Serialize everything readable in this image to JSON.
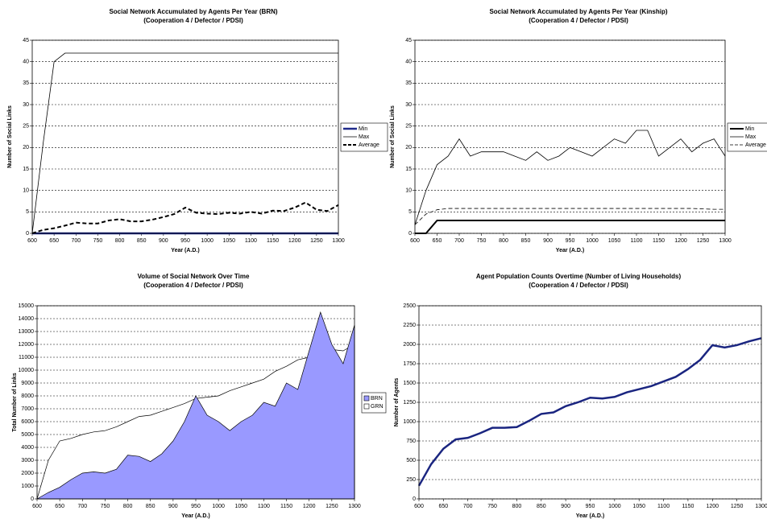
{
  "chart_data": [
    {
      "type": "line",
      "title": "Social Network Accumulated by Agents Per Year (BRN)",
      "subtitle": "(Cooperation 4 / Defector / PDSI)",
      "x_label": "Year (A.D.)",
      "y_label": "Number of Social Links",
      "x": [
        600,
        625,
        650,
        675,
        700,
        725,
        750,
        775,
        800,
        825,
        850,
        875,
        900,
        925,
        950,
        975,
        1000,
        1025,
        1050,
        1075,
        1100,
        1125,
        1150,
        1175,
        1200,
        1225,
        1250,
        1275,
        1300
      ],
      "xlim": [
        600,
        1300
      ],
      "xticks": [
        600,
        650,
        700,
        750,
        800,
        850,
        900,
        950,
        1000,
        1050,
        1100,
        1150,
        1200,
        1250,
        1300
      ],
      "ylim": [
        0,
        45
      ],
      "yticks": [
        0,
        5,
        10,
        15,
        20,
        25,
        30,
        35,
        40,
        45
      ],
      "grid": true,
      "legend": "right",
      "series": [
        {
          "name": "Min",
          "color": "#1f2a8a",
          "line_width": 2.5,
          "style": "solid",
          "values": [
            0,
            0,
            0,
            0,
            0,
            0,
            0,
            0,
            0,
            0,
            0,
            0,
            0,
            0,
            0,
            0,
            0,
            0,
            0,
            0,
            0,
            0,
            0,
            0,
            0,
            0,
            0,
            0,
            0
          ]
        },
        {
          "name": "Max",
          "color": "#000000",
          "line_width": 0.8,
          "style": "solid",
          "values": [
            0,
            21,
            40,
            42,
            42,
            42,
            42,
            42,
            42,
            42,
            42,
            42,
            42,
            42,
            42,
            42,
            42,
            42,
            42,
            42,
            42,
            42,
            42,
            42,
            42,
            42,
            42,
            42,
            42
          ]
        },
        {
          "name": "Average",
          "color": "#000000",
          "line_width": 2,
          "style": "dashed",
          "values": [
            0,
            0.8,
            1.2,
            1.8,
            2.5,
            2.3,
            2.3,
            3,
            3.3,
            2.8,
            2.8,
            3.2,
            3.8,
            4.5,
            6,
            4.8,
            4.6,
            4.5,
            4.8,
            4.6,
            5,
            4.6,
            5.3,
            5.2,
            6,
            7.2,
            5.5,
            5.2,
            6.6
          ]
        }
      ]
    },
    {
      "type": "line",
      "title": "Social Network Accumulated by Agents Per Year (Kinship)",
      "subtitle": "(Cooperation 4 / Defector / PDSI)",
      "x_label": "Year (A.D.)",
      "y_label": "Number of Social Links",
      "x": [
        600,
        625,
        650,
        675,
        700,
        725,
        750,
        775,
        800,
        825,
        850,
        875,
        900,
        925,
        950,
        975,
        1000,
        1025,
        1050,
        1075,
        1100,
        1125,
        1150,
        1175,
        1200,
        1225,
        1250,
        1275,
        1300
      ],
      "xlim": [
        600,
        1300
      ],
      "xticks": [
        600,
        650,
        700,
        750,
        800,
        850,
        900,
        950,
        1000,
        1050,
        1100,
        1150,
        1200,
        1250,
        1300
      ],
      "ylim": [
        0,
        45
      ],
      "yticks": [
        0,
        5,
        10,
        15,
        20,
        25,
        30,
        35,
        40,
        45
      ],
      "grid": true,
      "legend": "right",
      "series": [
        {
          "name": "Min",
          "color": "#000000",
          "line_width": 2,
          "style": "solid",
          "values": [
            0,
            0,
            3,
            3,
            3,
            3,
            3,
            3,
            3,
            3,
            3,
            3,
            3,
            3,
            3,
            3,
            3,
            3,
            3,
            3,
            3,
            3,
            3,
            3,
            3,
            3,
            3,
            3,
            3
          ]
        },
        {
          "name": "Max",
          "color": "#000000",
          "line_width": 0.8,
          "style": "solid",
          "values": [
            2,
            10,
            16,
            18,
            22,
            18,
            19,
            19,
            19,
            18,
            17,
            19,
            17,
            18,
            20,
            19,
            18,
            20,
            22,
            21,
            24,
            24,
            18,
            20,
            22,
            19,
            21,
            22,
            18
          ]
        },
        {
          "name": "Average",
          "color": "#000000",
          "line_width": 0.8,
          "style": "dashed",
          "values": [
            2,
            4.5,
            5.5,
            5.8,
            5.8,
            5.8,
            5.8,
            5.8,
            5.8,
            5.8,
            5.8,
            5.8,
            5.8,
            5.8,
            5.8,
            5.8,
            5.8,
            5.8,
            5.8,
            5.8,
            5.8,
            5.8,
            5.8,
            5.8,
            5.8,
            5.8,
            5.7,
            5.6,
            5.6
          ]
        }
      ]
    },
    {
      "type": "area",
      "title": "Volume of Social Network  Over Time",
      "subtitle": "(Cooperation 4 / Defector / PDSI)",
      "x_label": "Year (A.D.)",
      "y_label": "Total Number of Links",
      "x": [
        600,
        625,
        650,
        675,
        700,
        725,
        750,
        775,
        800,
        825,
        850,
        875,
        900,
        925,
        950,
        975,
        1000,
        1025,
        1050,
        1075,
        1100,
        1125,
        1150,
        1175,
        1200,
        1225,
        1250,
        1275,
        1300
      ],
      "xlim": [
        600,
        1300
      ],
      "xticks": [
        600,
        650,
        700,
        750,
        800,
        850,
        900,
        950,
        1000,
        1050,
        1100,
        1150,
        1200,
        1250,
        1300
      ],
      "ylim": [
        0,
        15000
      ],
      "yticks": [
        0,
        1000,
        2000,
        3000,
        4000,
        5000,
        6000,
        7000,
        8000,
        9000,
        10000,
        11000,
        12000,
        13000,
        14000,
        15000
      ],
      "grid": true,
      "legend": "right",
      "series": [
        {
          "name": "BRN",
          "color": "#9999ff",
          "values": [
            0,
            500,
            900,
            1500,
            2000,
            2100,
            2000,
            2300,
            3400,
            3300,
            2900,
            3500,
            4500,
            6000,
            8000,
            6500,
            6000,
            5300,
            6000,
            6500,
            7500,
            7200,
            9000,
            8500,
            11500,
            14500,
            12000,
            10500,
            13500
          ]
        },
        {
          "name": "GRN",
          "color": "#ffffff",
          "values": [
            0,
            3000,
            4500,
            4700,
            5000,
            5200,
            5300,
            5600,
            6000,
            6400,
            6500,
            6800,
            7100,
            7400,
            7800,
            7900,
            8000,
            8400,
            8700,
            9000,
            9300,
            9900,
            10300,
            10800,
            11000,
            11800,
            11600,
            11500,
            12000
          ]
        }
      ]
    },
    {
      "type": "line",
      "title": "Agent Population Counts Overtime (Number of Living Households)",
      "subtitle": "(Cooperation 4 / Defector / PDSI)",
      "x_label": "Year (A.D.)",
      "y_label": "Number of Agents",
      "x": [
        600,
        625,
        650,
        675,
        700,
        725,
        750,
        775,
        800,
        825,
        850,
        875,
        900,
        925,
        950,
        975,
        1000,
        1025,
        1050,
        1075,
        1100,
        1125,
        1150,
        1175,
        1200,
        1225,
        1250,
        1275,
        1300
      ],
      "xlim": [
        600,
        1300
      ],
      "xticks": [
        600,
        650,
        700,
        750,
        800,
        850,
        900,
        950,
        1000,
        1050,
        1100,
        1150,
        1200,
        1250,
        1300
      ],
      "ylim": [
        0,
        2500
      ],
      "yticks": [
        0,
        250,
        500,
        750,
        1000,
        1250,
        1500,
        1750,
        2000,
        2250,
        2500
      ],
      "grid": true,
      "series": [
        {
          "color": "#1a2580",
          "line_width": 2.5,
          "style": "solid",
          "values": [
            170,
            450,
            650,
            770,
            790,
            850,
            920,
            920,
            930,
            1010,
            1100,
            1120,
            1200,
            1250,
            1310,
            1300,
            1320,
            1380,
            1420,
            1460,
            1520,
            1580,
            1680,
            1800,
            1990,
            1960,
            1990,
            2040,
            2080
          ]
        }
      ]
    }
  ]
}
